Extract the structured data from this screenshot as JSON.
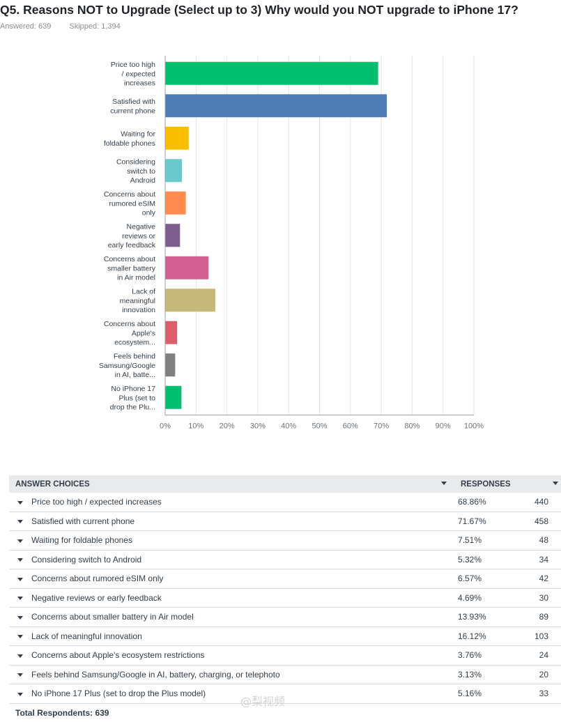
{
  "header": {
    "title": "Q5. Reasons NOT to Upgrade (Select up to 3) Why would you NOT upgrade to iPhone 17?",
    "answered": "Answered: 639",
    "skipped": "Skipped: 1,394"
  },
  "chart_data": {
    "type": "bar",
    "orientation": "horizontal",
    "categories": [
      [
        "Price too high",
        "/ expected",
        "increases"
      ],
      [
        "Satisfied with",
        "current phone"
      ],
      [
        "Waiting for",
        "foldable phones"
      ],
      [
        "Considering",
        "switch to",
        "Android"
      ],
      [
        "Concerns about",
        "rumored eSIM",
        "only"
      ],
      [
        "Negative",
        "reviews or",
        "early feedback"
      ],
      [
        "Concerns about",
        "smaller battery",
        "in Air model"
      ],
      [
        "Lack of",
        "meaningful",
        "innovation"
      ],
      [
        "Concerns about",
        "Apple's",
        "ecosystem..."
      ],
      [
        "Feels behind",
        "Samsung/Google",
        "in AI, batte..."
      ],
      [
        "No iPhone 17",
        "Plus (set to",
        "drop the Plu..."
      ]
    ],
    "values": [
      68.86,
      71.67,
      7.51,
      5.32,
      6.57,
      4.69,
      13.93,
      16.12,
      3.76,
      3.13,
      5.16
    ],
    "colors": [
      "#00bf6f",
      "#507cb6",
      "#f9be00",
      "#6bc8cd",
      "#ff8b4f",
      "#7d5e90",
      "#d25f90",
      "#c6b879",
      "#dd5d6a",
      "#7f8080",
      "#00bf6f"
    ],
    "xlim": [
      0,
      100
    ],
    "xticks": [
      "0%",
      "10%",
      "20%",
      "30%",
      "40%",
      "50%",
      "60%",
      "70%",
      "80%",
      "90%",
      "100%"
    ],
    "grid": true
  },
  "table": {
    "headers": {
      "choices": "ANSWER CHOICES",
      "responses": "RESPONSES"
    },
    "rows": [
      {
        "label": "Price too high / expected increases",
        "pct": "68.86%",
        "count": "440"
      },
      {
        "label": "Satisfied with current phone",
        "pct": "71.67%",
        "count": "458"
      },
      {
        "label": "Waiting for foldable phones",
        "pct": "7.51%",
        "count": "48"
      },
      {
        "label": "Considering switch to Android",
        "pct": "5.32%",
        "count": "34"
      },
      {
        "label": "Concerns about rumored eSIM only",
        "pct": "6.57%",
        "count": "42"
      },
      {
        "label": "Negative reviews or early feedback",
        "pct": "4.69%",
        "count": "30"
      },
      {
        "label": "Concerns about smaller battery in Air model",
        "pct": "13.93%",
        "count": "89"
      },
      {
        "label": "Lack of meaningful innovation",
        "pct": "16.12%",
        "count": "103"
      },
      {
        "label": "Concerns about Apple's ecosystem restrictions",
        "pct": "3.76%",
        "count": "24"
      },
      {
        "label": "Feels behind Samsung/Google in AI, battery, charging, or telephoto",
        "pct": "3.13%",
        "count": "20"
      },
      {
        "label": "No iPhone 17 Plus (set to drop the Plus model)",
        "pct": "5.16%",
        "count": "33"
      }
    ],
    "total": "Total Respondents: 639"
  },
  "watermark": "@梨视频"
}
